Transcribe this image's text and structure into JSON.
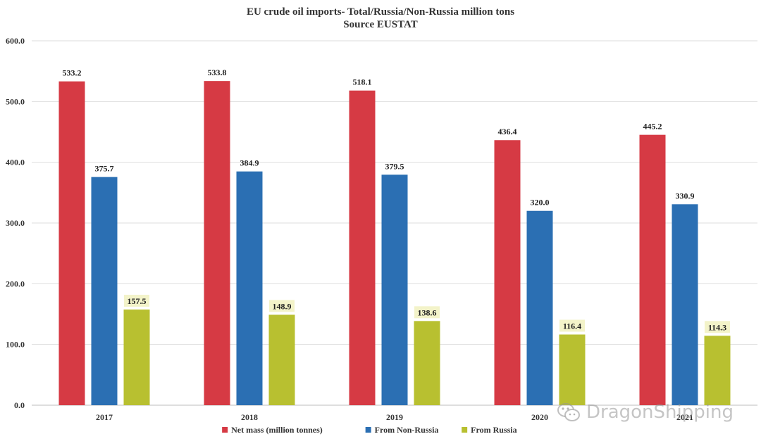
{
  "title_line1": "EU crude oil imports- Total/Russia/Non-Russia million tons",
  "title_line2": "Source EUSTAT",
  "watermark_text": "DragonShipping",
  "chart_data": {
    "type": "bar",
    "title": "EU crude oil imports- Total/Russia/Non-Russia million tons",
    "subtitle": "Source EUSTAT",
    "categories": [
      "2017",
      "2018",
      "2019",
      "2020",
      "2021"
    ],
    "series": [
      {
        "name": "Net mass (million tonnes)",
        "color": "#D63A44",
        "values": [
          533.2,
          533.8,
          518.1,
          436.4,
          445.2
        ]
      },
      {
        "name": "From Non-Russia",
        "color": "#2B6FB3",
        "values": [
          375.7,
          384.9,
          379.5,
          320.0,
          330.9
        ]
      },
      {
        "name": "From Russia",
        "color": "#B8C030",
        "label_bg": "#F3F3C9",
        "values": [
          157.5,
          148.9,
          138.6,
          116.4,
          114.3
        ]
      }
    ],
    "yticks": [
      "0.0",
      "100.0",
      "200.0",
      "300.0",
      "400.0",
      "500.0",
      "600.0"
    ],
    "ylim": [
      0,
      600
    ],
    "grid": true,
    "legend": "bottom-center",
    "xlabel": "",
    "ylabel": ""
  }
}
